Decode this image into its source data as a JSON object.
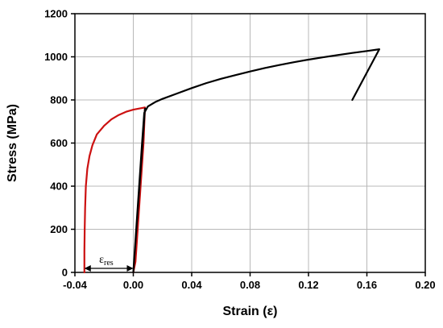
{
  "chart_data": {
    "type": "line",
    "title": "",
    "xlabel": "Strain (ε)",
    "ylabel": "Stress (MPa)",
    "xlim": [
      -0.04,
      0.2
    ],
    "ylim": [
      0,
      1200
    ],
    "xticks": [
      -0.04,
      0.0,
      0.04,
      0.08,
      0.12,
      0.16,
      0.2
    ],
    "xtick_labels": [
      "-0.04",
      "0.00",
      "0.04",
      "0.08",
      "0.12",
      "0.16",
      "0.20"
    ],
    "yticks": [
      0,
      200,
      400,
      600,
      800,
      1000,
      1200
    ],
    "ytick_labels": [
      "0",
      "200",
      "400",
      "600",
      "800",
      "1000",
      "1200"
    ],
    "grid": true,
    "series": [
      {
        "color": "#cc1111",
        "points": [
          [
            -0.0335,
            0
          ],
          [
            -0.0335,
            100
          ],
          [
            -0.0333,
            200
          ],
          [
            -0.033,
            300
          ],
          [
            -0.0325,
            400
          ],
          [
            -0.0315,
            480
          ],
          [
            -0.03,
            540
          ],
          [
            -0.028,
            590
          ],
          [
            -0.025,
            640
          ],
          [
            -0.02,
            680
          ],
          [
            -0.015,
            710
          ],
          [
            -0.01,
            730
          ],
          [
            -0.005,
            745
          ],
          [
            0.0,
            755
          ],
          [
            0.004,
            760
          ],
          [
            0.008,
            765
          ],
          [
            0.007,
            600
          ],
          [
            0.005,
            400
          ],
          [
            0.003,
            200
          ],
          [
            0.0015,
            50
          ],
          [
            0.0,
            0
          ]
        ]
      },
      {
        "color": "#000000",
        "points": [
          [
            0.0,
            0
          ],
          [
            0.008,
            760
          ],
          [
            0.0,
            0
          ],
          [
            0.0005,
            50
          ],
          [
            0.003,
            300
          ],
          [
            0.006,
            600
          ],
          [
            0.0075,
            740
          ],
          [
            0.01,
            770
          ],
          [
            0.015,
            790
          ],
          [
            0.02,
            805
          ],
          [
            0.03,
            830
          ],
          [
            0.04,
            855
          ],
          [
            0.05,
            878
          ],
          [
            0.06,
            898
          ],
          [
            0.07,
            915
          ],
          [
            0.08,
            932
          ],
          [
            0.09,
            948
          ],
          [
            0.1,
            962
          ],
          [
            0.11,
            975
          ],
          [
            0.12,
            987
          ],
          [
            0.13,
            998
          ],
          [
            0.14,
            1008
          ],
          [
            0.15,
            1018
          ],
          [
            0.16,
            1027
          ],
          [
            0.1685,
            1035
          ],
          [
            0.15,
            800
          ]
        ]
      }
    ],
    "annotations": [
      {
        "text": "ε",
        "subscript": "res",
        "x_span": [
          -0.0335,
          0.0
        ],
        "y": 0
      }
    ]
  }
}
